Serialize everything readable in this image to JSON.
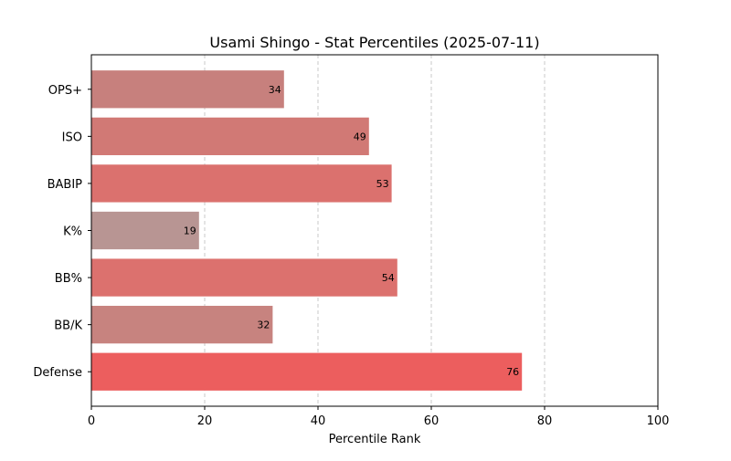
{
  "chart_data": {
    "type": "bar",
    "orientation": "horizontal",
    "title": "Usami Shingo - Stat Percentiles (2025-07-11)",
    "xlabel": "Percentile Rank",
    "ylabel": "",
    "xlim": [
      0,
      100
    ],
    "xticks": [
      0,
      20,
      40,
      60,
      80,
      100
    ],
    "grid": "x-dashed",
    "categories": [
      "OPS+",
      "ISO",
      "BABIP",
      "K%",
      "BB%",
      "BB/K",
      "Defense"
    ],
    "values": [
      34,
      49,
      53,
      19,
      54,
      32,
      76
    ],
    "colors": [
      "#c7807d",
      "#d17975",
      "#db716e",
      "#b89593",
      "#dc716e",
      "#c7837f",
      "#ec5e5e"
    ]
  }
}
